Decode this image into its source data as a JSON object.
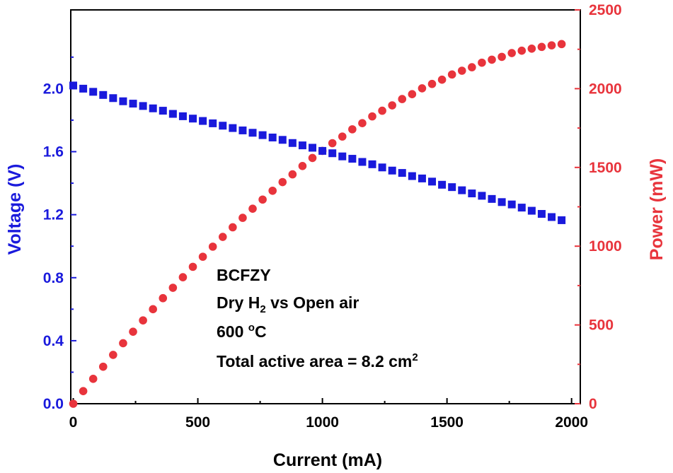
{
  "chart_data": {
    "type": "scatter",
    "title": "",
    "xlabel": "Current (mA)",
    "ylabel_left": "Voltage (V)",
    "ylabel_right": "Power (mW)",
    "xlim": [
      -10,
      2035
    ],
    "ylim_left": [
      0,
      2.5
    ],
    "ylim_right": [
      0,
      2500
    ],
    "x_ticks": [
      0,
      500,
      1000,
      1500,
      2000
    ],
    "x_tick_labels": [
      "0",
      "500",
      "1000",
      "1500",
      "2000"
    ],
    "y_left_ticks": [
      0,
      0.4,
      0.8,
      1.2,
      1.6,
      2.0
    ],
    "y_left_tick_labels": [
      "0.0",
      "0.4",
      "0.8",
      "1.2",
      "1.6",
      "2.0"
    ],
    "y_right_ticks": [
      0,
      500,
      1000,
      1500,
      2000,
      2500
    ],
    "y_right_tick_labels": [
      "0",
      "500",
      "1000",
      "1500",
      "2000",
      "2500"
    ],
    "grid": false,
    "colors": {
      "voltage": "#1a1adc",
      "power": "#e8343c",
      "axis": "#000000"
    },
    "x": [
      0,
      40,
      80,
      120,
      160,
      200,
      240,
      280,
      320,
      360,
      400,
      440,
      480,
      520,
      560,
      600,
      640,
      680,
      720,
      760,
      800,
      840,
      880,
      920,
      960,
      1000,
      1040,
      1080,
      1120,
      1160,
      1200,
      1240,
      1280,
      1320,
      1360,
      1400,
      1440,
      1480,
      1520,
      1560,
      1600,
      1640,
      1680,
      1720,
      1760,
      1800,
      1840,
      1880,
      1920,
      1960
    ],
    "series": [
      {
        "name": "Voltage",
        "axis": "left",
        "marker": "square",
        "values": [
          2.02,
          2.0,
          1.98,
          1.96,
          1.94,
          1.92,
          1.905,
          1.89,
          1.875,
          1.86,
          1.84,
          1.825,
          1.81,
          1.795,
          1.78,
          1.765,
          1.75,
          1.735,
          1.72,
          1.705,
          1.69,
          1.675,
          1.655,
          1.64,
          1.625,
          1.605,
          1.59,
          1.57,
          1.555,
          1.535,
          1.52,
          1.5,
          1.48,
          1.465,
          1.445,
          1.43,
          1.41,
          1.39,
          1.375,
          1.355,
          1.335,
          1.32,
          1.3,
          1.28,
          1.265,
          1.245,
          1.225,
          1.205,
          1.185,
          1.165
        ]
      },
      {
        "name": "Power",
        "axis": "right",
        "marker": "circle",
        "values": [
          0,
          80,
          158,
          235,
          310,
          384,
          457,
          529,
          600,
          670,
          736,
          803,
          869,
          933,
          997,
          1059,
          1120,
          1180,
          1238,
          1296,
          1352,
          1407,
          1456,
          1509,
          1560,
          1605,
          1654,
          1696,
          1742,
          1781,
          1824,
          1860,
          1894,
          1934,
          1965,
          2002,
          2030,
          2057,
          2090,
          2114,
          2136,
          2165,
          2184,
          2202,
          2226,
          2241,
          2254,
          2265,
          2275,
          2283
        ]
      }
    ],
    "annotations": [
      {
        "name": "sample",
        "text": "BCFZY"
      },
      {
        "name": "gas",
        "text": "Dry H",
        "sub": "2",
        "rest": " vs Open air"
      },
      {
        "name": "temperature",
        "text": "600 ",
        "sup": "o",
        "rest": "C"
      },
      {
        "name": "area",
        "text": "Total active area = 8.2 cm",
        "sup": "2"
      }
    ]
  }
}
